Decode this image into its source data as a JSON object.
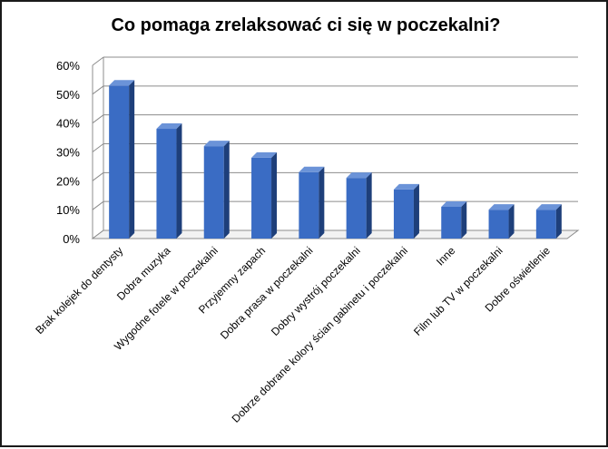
{
  "chart_data": {
    "type": "bar",
    "title": "Co pomaga zrelaksować ci się w poczekalni?",
    "categories": [
      "Brak kolejek do dentysty",
      "Dobra muzyka",
      "Wygodne fotele w poczekalni",
      "Przyjemny zapach",
      "Dobra prasa w poczekalni",
      "Dobry wystrój poczekalni",
      "Dobrze dobrane kolory ścian gabinetu i poczekalni",
      "Inne",
      "Film lub TV w poczekalni",
      "Dobre oświetlenie"
    ],
    "values": [
      53,
      38,
      32,
      28,
      23,
      21,
      17,
      11,
      10,
      10
    ],
    "unit": "%",
    "ylim": [
      0,
      60
    ],
    "yticks": [
      "0%",
      "10%",
      "20%",
      "30%",
      "40%",
      "50%",
      "60%"
    ],
    "grid": true,
    "legend": "none",
    "colors": {
      "bar_front": "#3a6cc4",
      "bar_side": "#1e3f7a",
      "bar_top": "#6b93d8",
      "grid": "#8c8c8c"
    }
  }
}
